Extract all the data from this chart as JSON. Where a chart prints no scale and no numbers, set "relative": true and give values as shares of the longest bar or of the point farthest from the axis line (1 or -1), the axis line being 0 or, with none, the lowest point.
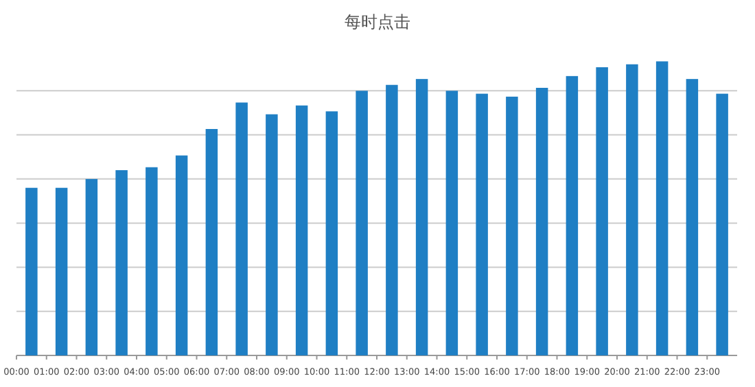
{
  "chart_data": {
    "type": "bar",
    "title": "每时点击",
    "categories": [
      "00:00",
      "01:00",
      "02:00",
      "03:00",
      "04:00",
      "05:00",
      "06:00",
      "07:00",
      "08:00",
      "09:00",
      "10:00",
      "11:00",
      "12:00",
      "13:00",
      "14:00",
      "15:00",
      "16:00",
      "17:00",
      "18:00",
      "19:00",
      "20:00",
      "21:00",
      "22:00",
      "23:00"
    ],
    "values": [
      0.57,
      0.57,
      0.6,
      0.63,
      0.64,
      0.68,
      0.77,
      0.86,
      0.82,
      0.85,
      0.83,
      0.9,
      0.92,
      0.94,
      0.9,
      0.89,
      0.88,
      0.91,
      0.95,
      0.98,
      0.99,
      1,
      0.94,
      0.89
    ],
    "color": "#1f7fc4",
    "relative": true,
    "grid": "y"
  }
}
